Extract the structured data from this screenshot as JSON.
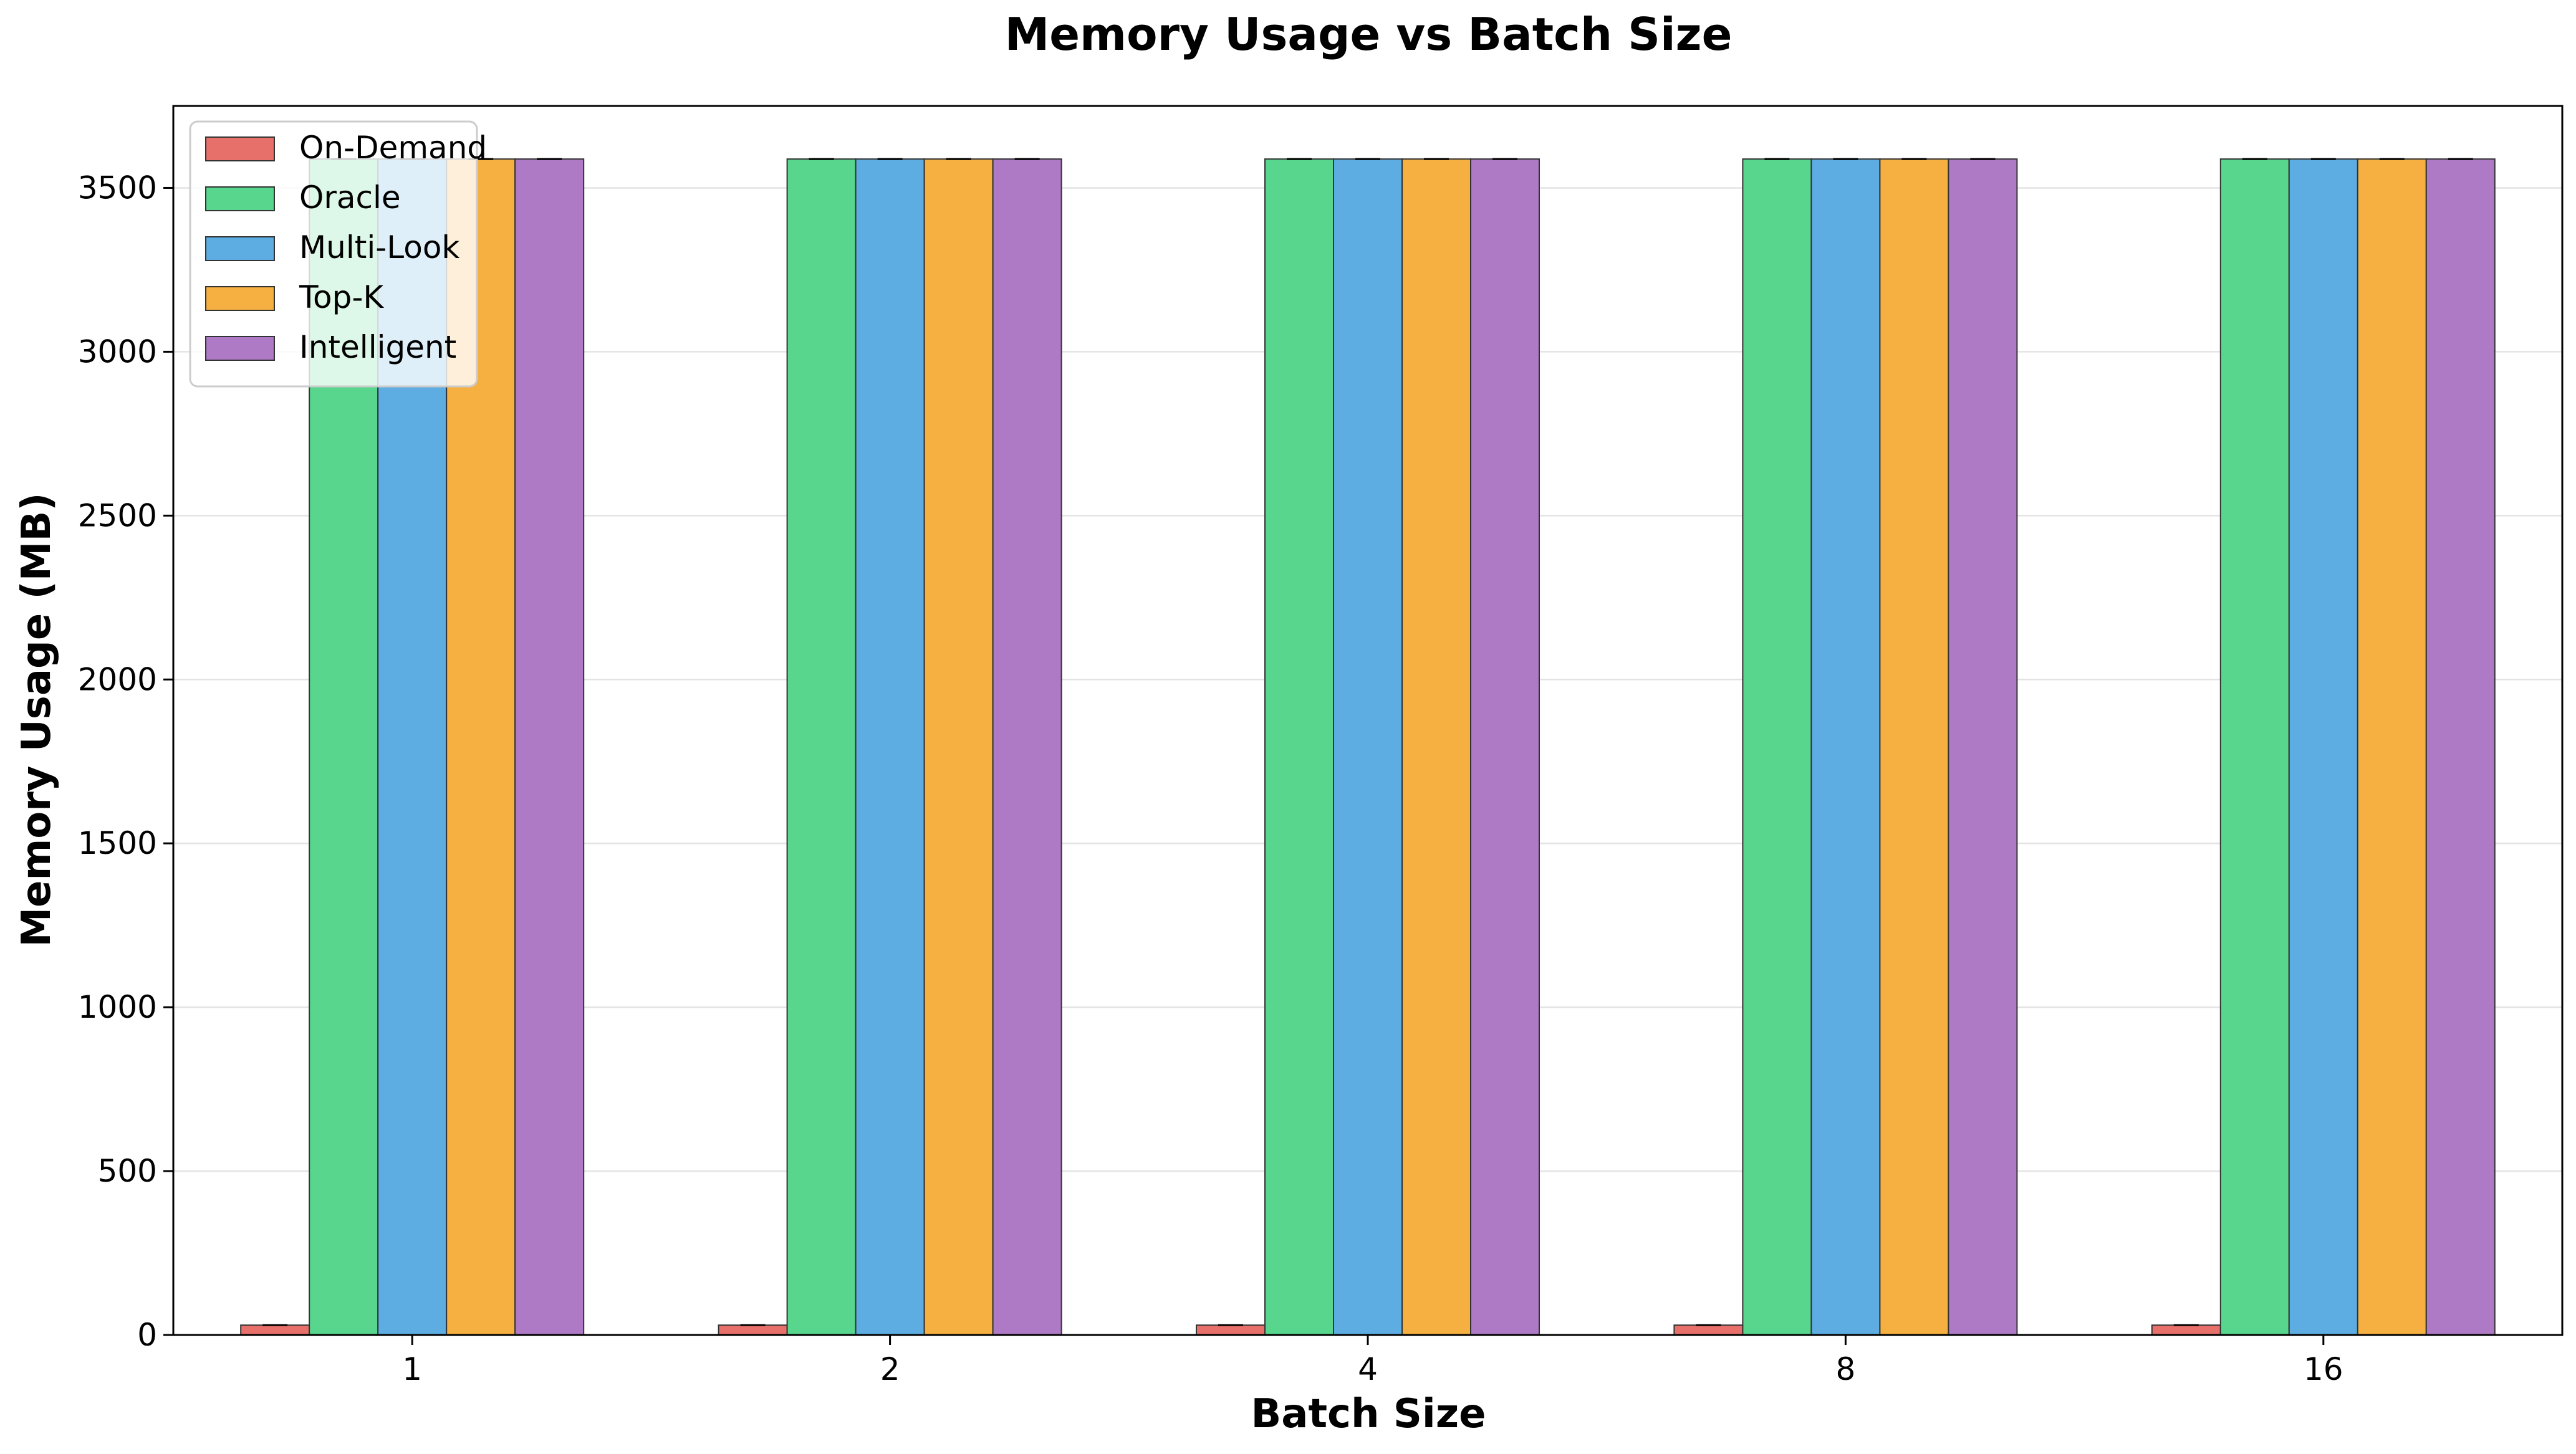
{
  "chart_data": {
    "type": "bar",
    "title": "Memory Usage vs Batch Size",
    "xlabel": "Batch Size",
    "ylabel": "Memory Usage (MB)",
    "categories": [
      "1",
      "2",
      "4",
      "8",
      "16"
    ],
    "ylim": [
      0,
      3750
    ],
    "yticks": [
      0,
      500,
      1000,
      1500,
      2000,
      2500,
      3000,
      3500
    ],
    "grid": "y",
    "legend_position": "upper-left",
    "series": [
      {
        "name": "On-Demand",
        "color": "#e8706a",
        "values": [
          30,
          30,
          30,
          30,
          30
        ]
      },
      {
        "name": "Oracle",
        "color": "#58d68d",
        "values": [
          3588,
          3588,
          3588,
          3588,
          3588
        ]
      },
      {
        "name": "Multi-Look",
        "color": "#5dade2",
        "values": [
          3588,
          3588,
          3588,
          3588,
          3588
        ]
      },
      {
        "name": "Top-K",
        "color": "#f5b041",
        "values": [
          3588,
          3588,
          3588,
          3588,
          3588
        ]
      },
      {
        "name": "Intelligent",
        "color": "#af7ac5",
        "values": [
          3588,
          3588,
          3588,
          3588,
          3588
        ]
      }
    ]
  }
}
